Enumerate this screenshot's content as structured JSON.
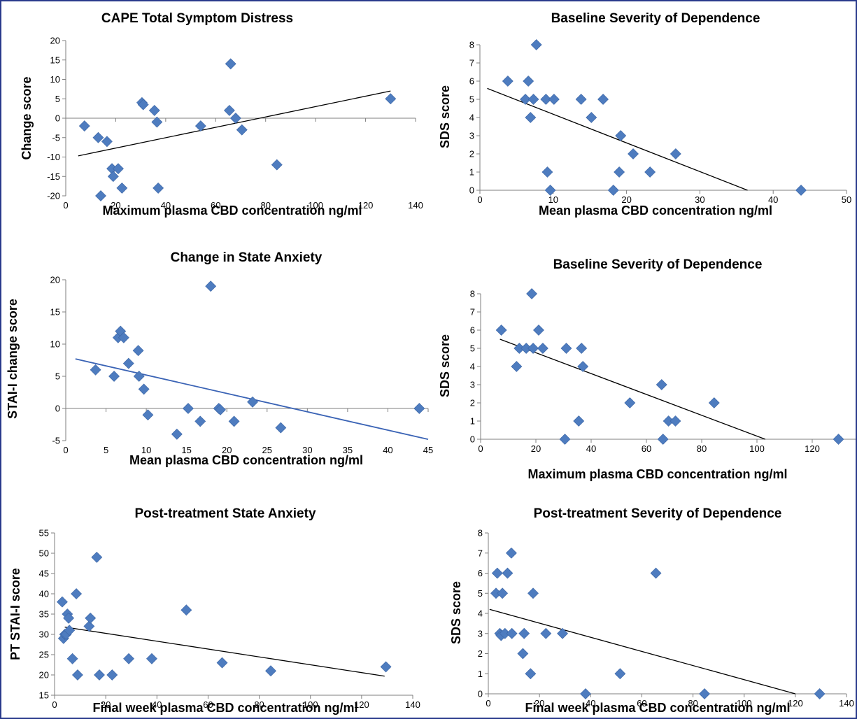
{
  "chart_data": [
    {
      "type": "scatter",
      "title": "CAPE Total Symptom Distress",
      "xlabel": "Maximum plasma CBD concentration ng/ml",
      "ylabel": "Change score",
      "xlim": [
        0,
        140
      ],
      "ylim": [
        -20,
        20
      ],
      "xticks": [
        0,
        20,
        40,
        60,
        80,
        100,
        120,
        140
      ],
      "yticks": [
        -20,
        -15,
        -10,
        -5,
        0,
        5,
        10,
        15,
        20
      ],
      "grid": false,
      "trendline": {
        "x": [
          5,
          130
        ],
        "y": [
          -9.7,
          7.0
        ],
        "color": "#000000"
      },
      "points": [
        {
          "x": 7.5,
          "y": -2
        },
        {
          "x": 13,
          "y": -5
        },
        {
          "x": 14,
          "y": -20
        },
        {
          "x": 16.5,
          "y": -6
        },
        {
          "x": 18.5,
          "y": -13
        },
        {
          "x": 19,
          "y": -15
        },
        {
          "x": 21,
          "y": -13
        },
        {
          "x": 22.5,
          "y": -18
        },
        {
          "x": 30.5,
          "y": 4
        },
        {
          "x": 31,
          "y": 3.5
        },
        {
          "x": 35.5,
          "y": 2
        },
        {
          "x": 36.5,
          "y": -1
        },
        {
          "x": 37,
          "y": -18
        },
        {
          "x": 54,
          "y": -2
        },
        {
          "x": 65.5,
          "y": 2
        },
        {
          "x": 66,
          "y": 14
        },
        {
          "x": 68,
          "y": 0
        },
        {
          "x": 70.5,
          "y": -3
        },
        {
          "x": 84.5,
          "y": -12
        },
        {
          "x": 130,
          "y": 5
        }
      ]
    },
    {
      "type": "scatter",
      "title": "Baseline Severity of Dependence",
      "xlabel": "Mean plasma CBD concentration ng/ml",
      "ylabel": "SDS score",
      "xlim": [
        0,
        50
      ],
      "ylim": [
        0,
        8
      ],
      "xticks": [
        0,
        10,
        20,
        30,
        40,
        50
      ],
      "yticks": [
        0,
        1,
        2,
        3,
        4,
        5,
        6,
        7,
        8
      ],
      "grid": false,
      "trendline": {
        "x": [
          1,
          36.5
        ],
        "y": [
          5.6,
          0.0
        ],
        "color": "#000000"
      },
      "points": [
        {
          "x": 3.8,
          "y": 6
        },
        {
          "x": 6.2,
          "y": 5
        },
        {
          "x": 6.6,
          "y": 6
        },
        {
          "x": 6.9,
          "y": 4
        },
        {
          "x": 7.3,
          "y": 5
        },
        {
          "x": 7.7,
          "y": 8
        },
        {
          "x": 9,
          "y": 5
        },
        {
          "x": 9.2,
          "y": 1
        },
        {
          "x": 9.6,
          "y": 0
        },
        {
          "x": 10.1,
          "y": 5
        },
        {
          "x": 13.8,
          "y": 5
        },
        {
          "x": 15.2,
          "y": 4
        },
        {
          "x": 16.8,
          "y": 5
        },
        {
          "x": 18.2,
          "y": 0
        },
        {
          "x": 19,
          "y": 1
        },
        {
          "x": 19.2,
          "y": 3
        },
        {
          "x": 20.9,
          "y": 2
        },
        {
          "x": 23.2,
          "y": 1
        },
        {
          "x": 26.7,
          "y": 2
        },
        {
          "x": 43.8,
          "y": 0
        }
      ]
    },
    {
      "type": "scatter",
      "title": "Change in State Anxiety",
      "xlabel": "Mean plasma CBD concentration ng/ml",
      "ylabel": "STAI-I change  score",
      "xlim": [
        0,
        45
      ],
      "ylim": [
        -5,
        20
      ],
      "xticks": [
        0,
        5,
        10,
        15,
        20,
        25,
        30,
        35,
        40,
        45
      ],
      "yticks": [
        -5,
        0,
        5,
        10,
        15,
        20
      ],
      "grid": false,
      "trendline": {
        "x": [
          1.2,
          45
        ],
        "y": [
          7.7,
          -4.8
        ],
        "color": "#3a63b5"
      },
      "points": [
        {
          "x": 3.7,
          "y": 6
        },
        {
          "x": 6,
          "y": 5
        },
        {
          "x": 6.5,
          "y": 11
        },
        {
          "x": 6.8,
          "y": 12
        },
        {
          "x": 7.2,
          "y": 11
        },
        {
          "x": 7.8,
          "y": 7
        },
        {
          "x": 9,
          "y": 9
        },
        {
          "x": 9.1,
          "y": 5
        },
        {
          "x": 9.7,
          "y": 3
        },
        {
          "x": 10.2,
          "y": -1
        },
        {
          "x": 13.8,
          "y": -4
        },
        {
          "x": 15.2,
          "y": 0
        },
        {
          "x": 16.7,
          "y": -2
        },
        {
          "x": 18,
          "y": 19
        },
        {
          "x": 19,
          "y": 0
        },
        {
          "x": 19.2,
          "y": -0.2
        },
        {
          "x": 20.9,
          "y": -2
        },
        {
          "x": 23.2,
          "y": 1
        },
        {
          "x": 26.7,
          "y": -3
        },
        {
          "x": 43.9,
          "y": 0
        }
      ]
    },
    {
      "type": "scatter",
      "title": "Baseline Severity of Dependence",
      "xlabel": "Maximum plasma CBD concentration ng/ml",
      "ylabel": "SDS score",
      "xlim": [
        0,
        140
      ],
      "ylim": [
        0,
        8
      ],
      "xticks": [
        0,
        20,
        40,
        60,
        80,
        100,
        120,
        140
      ],
      "yticks": [
        0,
        1,
        2,
        3,
        4,
        5,
        6,
        7,
        8
      ],
      "grid": false,
      "trendline": {
        "x": [
          7,
          103
        ],
        "y": [
          5.5,
          0.0
        ],
        "color": "#000000"
      },
      "points": [
        {
          "x": 7.5,
          "y": 6
        },
        {
          "x": 13,
          "y": 4
        },
        {
          "x": 14,
          "y": 5
        },
        {
          "x": 16.5,
          "y": 5
        },
        {
          "x": 18.5,
          "y": 8
        },
        {
          "x": 19,
          "y": 5
        },
        {
          "x": 21,
          "y": 6
        },
        {
          "x": 22.5,
          "y": 5
        },
        {
          "x": 30.5,
          "y": 0
        },
        {
          "x": 31,
          "y": 5
        },
        {
          "x": 35.5,
          "y": 1
        },
        {
          "x": 36.5,
          "y": 5
        },
        {
          "x": 37,
          "y": 4
        },
        {
          "x": 54,
          "y": 2
        },
        {
          "x": 65.5,
          "y": 3
        },
        {
          "x": 66,
          "y": 0
        },
        {
          "x": 68,
          "y": 1
        },
        {
          "x": 70.5,
          "y": 1
        },
        {
          "x": 84.5,
          "y": 2
        },
        {
          "x": 129.5,
          "y": 0
        }
      ]
    },
    {
      "type": "scatter",
      "title": "Post-treatment State Anxiety",
      "xlabel": "Final week plasma CBD concentration ng/ml",
      "ylabel": "PT STAI-I score",
      "xlim": [
        0,
        140
      ],
      "ylim": [
        15,
        55
      ],
      "xticks": [
        0,
        20,
        40,
        60,
        80,
        100,
        120,
        140
      ],
      "yticks": [
        15,
        20,
        25,
        30,
        35,
        40,
        45,
        50,
        55
      ],
      "grid": false,
      "trendline": {
        "x": [
          4,
          129
        ],
        "y": [
          31.8,
          19.7
        ],
        "color": "#000000"
      },
      "points": [
        {
          "x": 3,
          "y": 38
        },
        {
          "x": 3.5,
          "y": 29
        },
        {
          "x": 4,
          "y": 30
        },
        {
          "x": 4.5,
          "y": 30
        },
        {
          "x": 5,
          "y": 35
        },
        {
          "x": 5.5,
          "y": 34
        },
        {
          "x": 5.8,
          "y": 31
        },
        {
          "x": 7,
          "y": 24
        },
        {
          "x": 8.5,
          "y": 40
        },
        {
          "x": 9,
          "y": 20
        },
        {
          "x": 13.5,
          "y": 32
        },
        {
          "x": 14,
          "y": 34
        },
        {
          "x": 16.5,
          "y": 49
        },
        {
          "x": 17.5,
          "y": 20
        },
        {
          "x": 22.5,
          "y": 20
        },
        {
          "x": 29,
          "y": 24
        },
        {
          "x": 38,
          "y": 24
        },
        {
          "x": 51.5,
          "y": 36
        },
        {
          "x": 65.5,
          "y": 23
        },
        {
          "x": 84.5,
          "y": 21
        },
        {
          "x": 129.5,
          "y": 22
        }
      ]
    },
    {
      "type": "scatter",
      "title": "Post-treatment Severity of Dependence",
      "xlabel": "Final week plasma CBD concentration ng/ml",
      "ylabel": "SDS score",
      "xlim": [
        0,
        140
      ],
      "ylim": [
        0,
        8
      ],
      "xticks": [
        0,
        20,
        40,
        60,
        80,
        100,
        120,
        140
      ],
      "yticks": [
        0,
        1,
        2,
        3,
        4,
        5,
        6,
        7,
        8
      ],
      "grid": false,
      "trendline": {
        "x": [
          0.5,
          120
        ],
        "y": [
          4.2,
          0.0
        ],
        "color": "#000000"
      },
      "points": [
        {
          "x": 3,
          "y": 5
        },
        {
          "x": 3.5,
          "y": 6
        },
        {
          "x": 4.5,
          "y": 3
        },
        {
          "x": 5,
          "y": 2.9
        },
        {
          "x": 5.5,
          "y": 5
        },
        {
          "x": 6.5,
          "y": 3
        },
        {
          "x": 7.5,
          "y": 6
        },
        {
          "x": 9,
          "y": 7
        },
        {
          "x": 9.2,
          "y": 3
        },
        {
          "x": 13.5,
          "y": 2
        },
        {
          "x": 14,
          "y": 3
        },
        {
          "x": 16.5,
          "y": 1
        },
        {
          "x": 17.5,
          "y": 5
        },
        {
          "x": 22.5,
          "y": 3
        },
        {
          "x": 29,
          "y": 3
        },
        {
          "x": 38,
          "y": 0
        },
        {
          "x": 51.5,
          "y": 1
        },
        {
          "x": 65.5,
          "y": 6
        },
        {
          "x": 84.5,
          "y": 0
        },
        {
          "x": 129.5,
          "y": 0
        }
      ]
    }
  ]
}
